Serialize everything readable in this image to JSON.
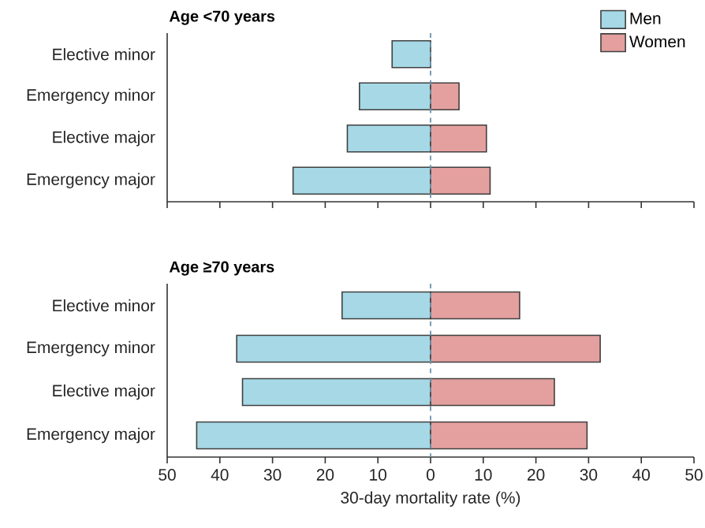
{
  "chart_data": [
    {
      "type": "bar",
      "orientation": "horizontal",
      "title": "Age <70 years",
      "categories": [
        "Elective minor",
        "Emergency minor",
        "Elective major",
        "Emergency major"
      ],
      "series": [
        {
          "name": "Men",
          "color": "#a6d8e6",
          "values": [
            -7.3,
            -13.5,
            -15.8,
            -26.1
          ]
        },
        {
          "name": "Women",
          "color": "#e3a09e",
          "values": [
            null,
            5.4,
            10.6,
            11.3
          ]
        }
      ],
      "stacked": true,
      "xlim": [
        -50,
        50
      ],
      "xticks": [
        {
          "value": -50,
          "label": null
        },
        {
          "value": -40,
          "label": null
        },
        {
          "value": -30,
          "label": null
        },
        {
          "value": -20,
          "label": null
        },
        {
          "value": -10,
          "label": null
        },
        {
          "value": 0,
          "label": null
        },
        {
          "value": 10,
          "label": null
        },
        {
          "value": 20,
          "label": null
        },
        {
          "value": 30,
          "label": null
        },
        {
          "value": 40,
          "label": null
        },
        {
          "value": 50,
          "label": null
        }
      ],
      "tick_labels": "y",
      "legend": "top right",
      "ref_lines": [
        {
          "axis": "x",
          "value": 0,
          "color": "#6a93ad",
          "line_style": "dashed"
        }
      ]
    },
    {
      "type": "bar",
      "orientation": "horizontal",
      "title": "Age ≥70 years",
      "xlabel": "30-day mortality rate (%)",
      "categories": [
        "Elective minor",
        "Emergency minor",
        "Elective major",
        "Emergency major"
      ],
      "series": [
        {
          "color": "#a6d8e6",
          "values": [
            -16.8,
            -36.8,
            -35.7,
            -44.4
          ]
        },
        {
          "color": "#e3a09e",
          "values": [
            16.9,
            32.2,
            23.5,
            29.7
          ]
        }
      ],
      "stacked": true,
      "xlim": [
        -50,
        50
      ],
      "xticks": [
        {
          "value": -50,
          "label": "50"
        },
        {
          "value": -40,
          "label": "40"
        },
        {
          "value": -30,
          "label": "30"
        },
        {
          "value": -20,
          "label": "20"
        },
        {
          "value": -10,
          "label": "10"
        },
        0,
        10,
        20,
        30,
        40,
        50
      ],
      "ref_lines": [
        {
          "axis": "x",
          "value": 0,
          "color": "#6a93ad",
          "line_style": "dashed"
        }
      ]
    }
  ]
}
